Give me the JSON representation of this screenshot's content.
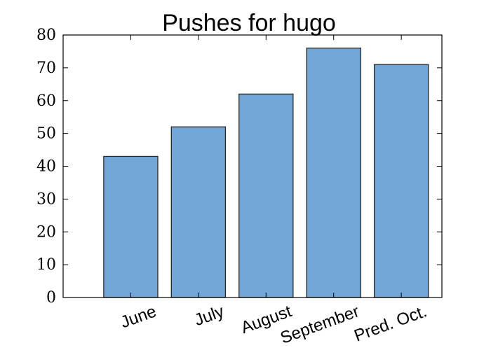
{
  "chart_data": {
    "type": "bar",
    "title": "Pushes for hugo",
    "xlabel": "",
    "ylabel": "",
    "categories": [
      "June",
      "July",
      "August",
      "September",
      "Pred. Oct."
    ],
    "values": [
      43,
      52,
      62,
      76,
      71
    ],
    "ylim": [
      0,
      80
    ],
    "yticks": [
      "0",
      "10",
      "20",
      "30",
      "40",
      "50",
      "60",
      "70",
      "80"
    ],
    "grid": false,
    "legend": "none",
    "bar_color": "#71a6d6",
    "edge_color": "#2a2a2a"
  }
}
